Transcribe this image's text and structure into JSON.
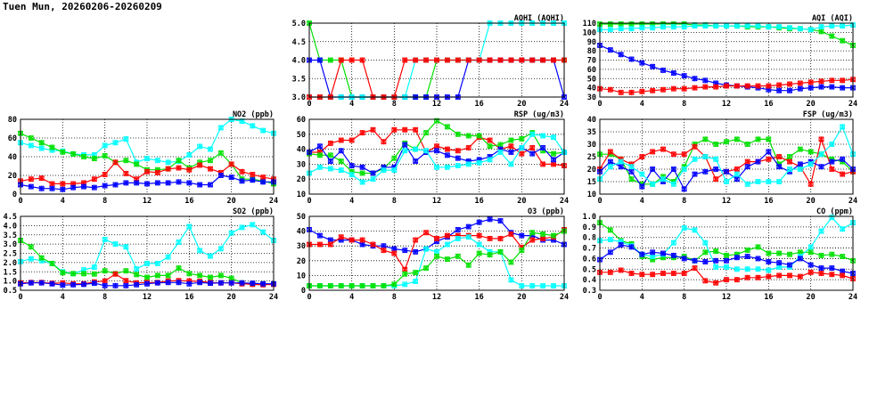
{
  "title": "Tuen Mun, 20260206-20260209",
  "series_colors": {
    "red": "#ff0000",
    "green": "#00e000",
    "blue": "#0000ff",
    "cyan": "#00ffff"
  },
  "chart_data": [
    {
      "id": "aqhi",
      "type": "line",
      "title": "AQHI (AQHI)",
      "xlim": [
        0,
        24
      ],
      "xticks": [
        0,
        4,
        8,
        12,
        16,
        20,
        24
      ],
      "ylim": [
        3,
        5
      ],
      "yticks": [
        "3.0",
        "3.5",
        "4.0",
        "4.5",
        "5.0"
      ],
      "grid": true,
      "series": [
        {
          "name": "green",
          "values": [
            5,
            4,
            4,
            4,
            3,
            3,
            3,
            3,
            3,
            3,
            3,
            3,
            4,
            4,
            4,
            4,
            4,
            4,
            4,
            4,
            4,
            4,
            4,
            4,
            4
          ]
        },
        {
          "name": "blue",
          "values": [
            4,
            4,
            3,
            3,
            3,
            3,
            3,
            3,
            3,
            3,
            3,
            3,
            3,
            3,
            3,
            4,
            4,
            4,
            4,
            4,
            4,
            4,
            4,
            4,
            3
          ]
        },
        {
          "name": "cyan",
          "values": [
            3,
            3,
            3,
            3,
            3,
            3,
            3,
            3,
            3,
            3,
            4,
            4,
            4,
            4,
            4,
            4,
            4,
            5,
            5,
            5,
            5,
            5,
            5,
            5,
            5
          ]
        },
        {
          "name": "red",
          "values": [
            3,
            3,
            3,
            4,
            4,
            4,
            3,
            3,
            3,
            4,
            4,
            4,
            4,
            4,
            4,
            4,
            4,
            4,
            4,
            4,
            4,
            4,
            4,
            4,
            4
          ]
        }
      ]
    },
    {
      "id": "aqi",
      "type": "line",
      "title": "AQI (AQI)",
      "xlim": [
        0,
        24
      ],
      "xticks": [
        0,
        4,
        8,
        12,
        16,
        20,
        24
      ],
      "ylim": [
        30,
        110
      ],
      "yticks": [
        "30",
        "40",
        "50",
        "60",
        "70",
        "80",
        "90",
        "100",
        "110"
      ],
      "grid": true,
      "series": [
        {
          "name": "green",
          "values": [
            109,
            109,
            109,
            109,
            109,
            109,
            109,
            109,
            109,
            108,
            108,
            107,
            107,
            107,
            106,
            106,
            106,
            105,
            104,
            104,
            103,
            101,
            96,
            91,
            86
          ]
        },
        {
          "name": "cyan",
          "values": [
            103,
            103,
            104,
            104,
            105,
            105,
            106,
            106,
            106,
            107,
            107,
            107,
            107,
            107,
            107,
            107,
            106,
            106,
            105,
            104,
            103,
            106,
            107,
            107,
            108
          ]
        },
        {
          "name": "blue",
          "values": [
            86,
            81,
            76,
            71,
            67,
            63,
            59,
            56,
            53,
            50,
            48,
            45,
            43,
            42,
            41,
            40,
            38,
            37,
            37,
            39,
            40,
            41,
            41,
            40,
            40
          ]
        },
        {
          "name": "red",
          "values": [
            39,
            38,
            35,
            35,
            36,
            37,
            38,
            39,
            39,
            40,
            41,
            41,
            42,
            42,
            42,
            42,
            42,
            43,
            44,
            45,
            46,
            47,
            48,
            48,
            49
          ]
        }
      ]
    },
    {
      "id": "no2",
      "type": "line",
      "title": "NO2 (ppb)",
      "xlim": [
        0,
        24
      ],
      "xticks": [
        0,
        4,
        8,
        12,
        16,
        20,
        24
      ],
      "ylim": [
        0,
        80
      ],
      "yticks": [
        "0",
        "20",
        "40",
        "60",
        "80"
      ],
      "grid": true,
      "series": [
        {
          "name": "cyan",
          "values": [
            55,
            52,
            49,
            47,
            46,
            43,
            42,
            42,
            52,
            55,
            59,
            34,
            38,
            36,
            34,
            35,
            42,
            51,
            48,
            71,
            80,
            78,
            73,
            68,
            65
          ]
        },
        {
          "name": "green",
          "values": [
            65,
            60,
            55,
            50,
            45,
            43,
            40,
            38,
            41,
            34,
            36,
            32,
            26,
            26,
            27,
            36,
            28,
            34,
            36,
            44,
            32,
            16,
            16,
            14,
            11
          ]
        },
        {
          "name": "red",
          "values": [
            14,
            16,
            17,
            11,
            11,
            11,
            12,
            16,
            21,
            34,
            22,
            16,
            24,
            23,
            27,
            28,
            26,
            31,
            27,
            23,
            32,
            24,
            21,
            18,
            16
          ]
        },
        {
          "name": "blue",
          "values": [
            10,
            8,
            6,
            6,
            5,
            7,
            8,
            7,
            9,
            10,
            12,
            12,
            11,
            12,
            12,
            13,
            12,
            10,
            10,
            20,
            18,
            14,
            15,
            13,
            13
          ]
        }
      ]
    },
    {
      "id": "rsp",
      "type": "line",
      "title": "RSP (ug/m3)",
      "xlim": [
        0,
        24
      ],
      "xticks": [
        0,
        4,
        8,
        12,
        16,
        20,
        24
      ],
      "ylim": [
        10,
        60
      ],
      "yticks": [
        "10",
        "20",
        "30",
        "40",
        "50",
        "60"
      ],
      "grid": true,
      "series": [
        {
          "name": "red",
          "values": [
            38,
            38,
            44,
            46,
            46,
            51,
            53,
            45,
            53,
            53,
            53,
            38,
            42,
            40,
            39,
            41,
            48,
            46,
            40,
            42,
            37,
            41,
            30,
            30,
            29
          ]
        },
        {
          "name": "green",
          "values": [
            37,
            36,
            36,
            32,
            25,
            24,
            24,
            27,
            34,
            44,
            40,
            51,
            59,
            55,
            50,
            49,
            49,
            42,
            43,
            46,
            47,
            51,
            39,
            37,
            38
          ]
        },
        {
          "name": "blue",
          "values": [
            38,
            42,
            32,
            39,
            29,
            28,
            24,
            28,
            28,
            43,
            32,
            38,
            39,
            36,
            34,
            32,
            33,
            35,
            40,
            38,
            41,
            37,
            41,
            33,
            38
          ]
        },
        {
          "name": "cyan",
          "values": [
            24,
            28,
            27,
            26,
            23,
            18,
            20,
            26,
            26,
            39,
            40,
            39,
            28,
            28,
            29,
            30,
            31,
            33,
            38,
            30,
            41,
            50,
            49,
            48,
            38
          ]
        }
      ]
    },
    {
      "id": "fsp",
      "type": "line",
      "title": "FSP (ug/m3)",
      "xlim": [
        0,
        24
      ],
      "xticks": [
        0,
        4,
        8,
        12,
        16,
        20,
        24
      ],
      "ylim": [
        10,
        40
      ],
      "yticks": [
        "10",
        "15",
        "20",
        "25",
        "30",
        "35",
        "40"
      ],
      "grid": true,
      "series": [
        {
          "name": "green",
          "values": [
            26,
            26,
            24,
            16,
            14,
            14,
            17,
            15,
            21,
            30,
            32,
            30,
            31,
            32,
            30,
            32,
            32,
            22,
            25,
            28,
            27,
            26,
            24,
            23,
            19
          ]
        },
        {
          "name": "red",
          "values": [
            20,
            27,
            24,
            22,
            25,
            27,
            28,
            26,
            26,
            29,
            25,
            16,
            19,
            20,
            23,
            23,
            24,
            25,
            23,
            21,
            14,
            32,
            20,
            18,
            19
          ]
        },
        {
          "name": "blue",
          "values": [
            19,
            23,
            21,
            19,
            13,
            20,
            15,
            20,
            12,
            18,
            19,
            20,
            19,
            16,
            21,
            23,
            27,
            21,
            19,
            22,
            23,
            21,
            23,
            24,
            20
          ]
        },
        {
          "name": "cyan",
          "values": [
            16,
            21,
            23,
            21,
            18,
            14,
            16,
            14,
            20,
            24,
            25,
            24,
            15,
            18,
            14,
            15,
            15,
            15,
            20,
            20,
            22,
            26,
            30,
            37,
            26
          ]
        }
      ]
    },
    {
      "id": "so2",
      "type": "line",
      "title": "SO2 (ppb)",
      "xlim": [
        0,
        24
      ],
      "xticks": [
        0,
        4,
        8,
        12,
        16,
        20,
        24
      ],
      "ylim": [
        0.5,
        4.5
      ],
      "yticks": [
        "0.5",
        "1.0",
        "1.5",
        "2.0",
        "2.5",
        "3.0",
        "3.5",
        "4.0",
        "4.5"
      ],
      "grid": true,
      "series": [
        {
          "name": "cyan",
          "values": [
            2.05,
            2.2,
            2.1,
            1.95,
            1.5,
            1.4,
            1.6,
            1.75,
            3.25,
            3.0,
            2.85,
            1.65,
            1.95,
            1.95,
            2.3,
            3.1,
            3.95,
            2.65,
            2.35,
            2.75,
            3.6,
            3.9,
            4.05,
            3.65,
            3.2
          ]
        },
        {
          "name": "green",
          "values": [
            3.2,
            2.85,
            2.25,
            1.95,
            1.45,
            1.4,
            1.4,
            1.38,
            1.55,
            1.4,
            1.55,
            1.35,
            1.2,
            1.3,
            1.3,
            1.7,
            1.4,
            1.3,
            1.2,
            1.3,
            1.15,
            0.9,
            0.85,
            0.85,
            0.85
          ]
        },
        {
          "name": "red",
          "values": [
            0.9,
            0.92,
            0.92,
            0.88,
            0.9,
            0.85,
            0.85,
            0.95,
            1.0,
            1.38,
            1.02,
            0.9,
            0.92,
            0.92,
            1.0,
            1.02,
            1.0,
            0.98,
            0.92,
            0.9,
            0.9,
            0.85,
            0.82,
            0.8,
            0.82
          ]
        },
        {
          "name": "blue",
          "values": [
            0.85,
            0.9,
            0.9,
            0.85,
            0.78,
            0.8,
            0.82,
            0.88,
            0.75,
            0.75,
            0.75,
            0.8,
            0.85,
            0.9,
            0.92,
            0.92,
            0.85,
            0.92,
            0.88,
            0.9,
            0.9,
            0.9,
            0.88,
            0.85,
            0.85
          ]
        }
      ]
    },
    {
      "id": "o3",
      "type": "line",
      "title": "O3 (ppb)",
      "xlim": [
        0,
        24
      ],
      "xticks": [
        0,
        4,
        8,
        12,
        16,
        20,
        24
      ],
      "ylim": [
        0,
        50
      ],
      "yticks": [
        "0",
        "10",
        "20",
        "30",
        "40",
        "50"
      ],
      "grid": true,
      "series": [
        {
          "name": "blue",
          "values": [
            41,
            37,
            34,
            34,
            34,
            31,
            30,
            30,
            28,
            27,
            26,
            28,
            33,
            36,
            41,
            43,
            46,
            48,
            47,
            39,
            37,
            37,
            34,
            34,
            31
          ]
        },
        {
          "name": "red",
          "values": [
            31,
            31,
            31,
            36,
            34,
            34,
            31,
            27,
            25,
            14,
            34,
            39,
            35,
            37,
            37,
            37,
            37,
            35,
            35,
            38,
            29,
            34,
            35,
            36,
            41
          ]
        },
        {
          "name": "cyan",
          "values": [
            3,
            3,
            3,
            3,
            3,
            3,
            3,
            3,
            3,
            4,
            6,
            28,
            26,
            31,
            35,
            36,
            31,
            26,
            26,
            7,
            3,
            3,
            3,
            3,
            3
          ]
        },
        {
          "name": "green",
          "values": [
            3,
            3,
            3,
            3,
            3,
            3,
            3,
            3,
            4,
            11,
            12,
            15,
            23,
            21,
            23,
            17,
            25,
            24,
            26,
            19,
            27,
            39,
            38,
            37,
            40
          ]
        }
      ]
    },
    {
      "id": "co",
      "type": "line",
      "title": "CO (ppm)",
      "xlim": [
        0,
        24
      ],
      "xticks": [
        0,
        4,
        8,
        12,
        16,
        20,
        24
      ],
      "ylim": [
        0.3,
        1.0
      ],
      "yticks": [
        "0.3",
        "0.4",
        "0.5",
        "0.6",
        "0.7",
        "0.8",
        "0.9",
        "1.0"
      ],
      "grid": true,
      "series": [
        {
          "name": "green",
          "values": [
            0.94,
            0.87,
            0.77,
            0.74,
            0.62,
            0.59,
            0.61,
            0.61,
            0.62,
            0.58,
            0.66,
            0.67,
            0.63,
            0.64,
            0.68,
            0.71,
            0.65,
            0.65,
            0.64,
            0.66,
            0.66,
            0.63,
            0.64,
            0.62,
            0.58
          ]
        },
        {
          "name": "cyan",
          "values": [
            0.77,
            0.78,
            0.76,
            0.72,
            0.64,
            0.62,
            0.64,
            0.75,
            0.89,
            0.87,
            0.75,
            0.52,
            0.52,
            0.5,
            0.5,
            0.5,
            0.49,
            0.52,
            0.52,
            0.62,
            0.71,
            0.86,
            0.99,
            0.88,
            0.94
          ]
        },
        {
          "name": "blue",
          "values": [
            0.59,
            0.66,
            0.73,
            0.71,
            0.64,
            0.66,
            0.65,
            0.63,
            0.6,
            0.58,
            0.57,
            0.58,
            0.58,
            0.61,
            0.62,
            0.6,
            0.57,
            0.56,
            0.54,
            0.6,
            0.54,
            0.51,
            0.51,
            0.48,
            0.46
          ]
        },
        {
          "name": "red",
          "values": [
            0.47,
            0.47,
            0.49,
            0.46,
            0.45,
            0.45,
            0.46,
            0.46,
            0.46,
            0.51,
            0.39,
            0.37,
            0.4,
            0.4,
            0.42,
            0.42,
            0.43,
            0.44,
            0.44,
            0.43,
            0.47,
            0.46,
            0.45,
            0.44,
            0.41
          ]
        }
      ]
    }
  ]
}
